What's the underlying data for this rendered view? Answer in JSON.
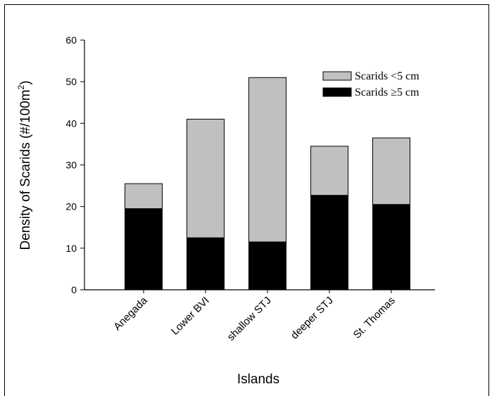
{
  "chart_data": {
    "type": "bar",
    "stacked": true,
    "categories": [
      "Anegada",
      "Lower BVI",
      "shallow STJ",
      "deeper STJ",
      "St. Thomas"
    ],
    "series": [
      {
        "name": "Scarids ≥5 cm",
        "color": "#000000",
        "values": [
          19.5,
          12.5,
          11.5,
          22.7,
          20.5
        ]
      },
      {
        "name": "Scarids <5 cm",
        "color": "#c0c0c0",
        "values": [
          6.0,
          28.5,
          39.5,
          11.8,
          16.0
        ]
      }
    ],
    "xlabel": "Islands",
    "ylabel_main": "Density of Scarids (#/100m",
    "ylabel_sup": "2",
    "ylabel_end": ")",
    "ylim": [
      0,
      60
    ],
    "yticks": [
      0,
      10,
      20,
      30,
      40,
      50,
      60
    ],
    "legend": {
      "position": "top-right",
      "items": [
        {
          "label": "Scarids <5 cm",
          "color": "#c0c0c0"
        },
        {
          "label": "Scarids ≥5 cm",
          "color": "#000000"
        }
      ]
    },
    "grid": false
  }
}
